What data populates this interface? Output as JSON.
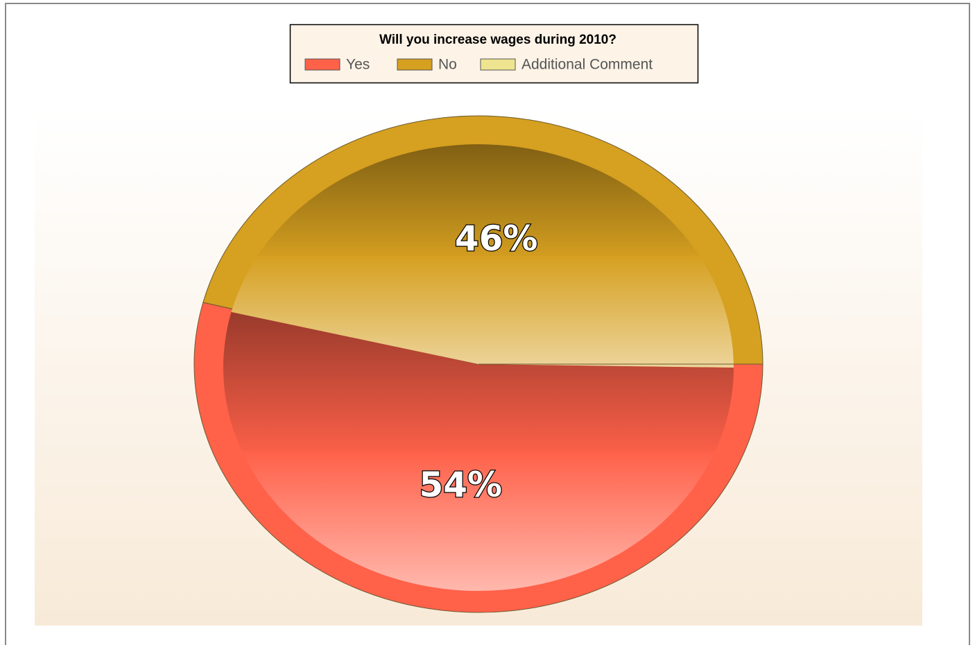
{
  "chart_data": {
    "type": "pie",
    "title": "Will you increase wages during 2010?",
    "categories": [
      "Yes",
      "No",
      "Additional Comment"
    ],
    "values": [
      54,
      46,
      0
    ],
    "value_labels": [
      "54%",
      "46%",
      null
    ],
    "colors": [
      "#ff6149",
      "#d6a020",
      "#efe590"
    ],
    "start_angle": 0,
    "direction": "clockwise"
  }
}
